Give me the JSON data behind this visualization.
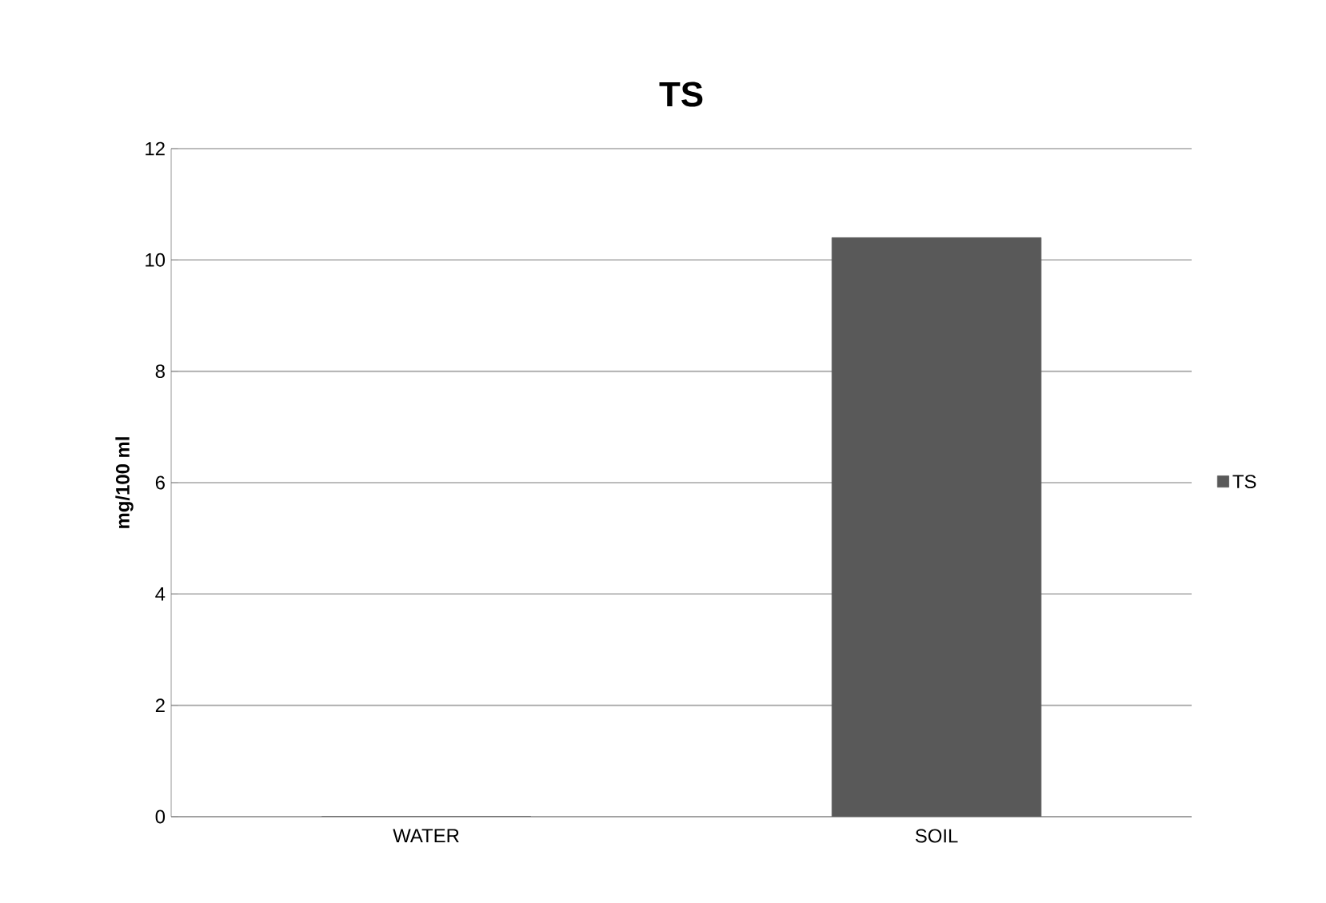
{
  "chart_data": {
    "type": "bar",
    "title": "TS",
    "ylabel": "mg/100 ml",
    "categories": [
      "WATER",
      "SOIL"
    ],
    "series": [
      {
        "name": "TS",
        "color": "#595959",
        "values": [
          0,
          10.4
        ]
      }
    ],
    "ylim": [
      0,
      12
    ],
    "yticks": [
      0,
      2,
      4,
      6,
      8,
      10,
      12
    ],
    "grid": "y",
    "legend": "right"
  }
}
